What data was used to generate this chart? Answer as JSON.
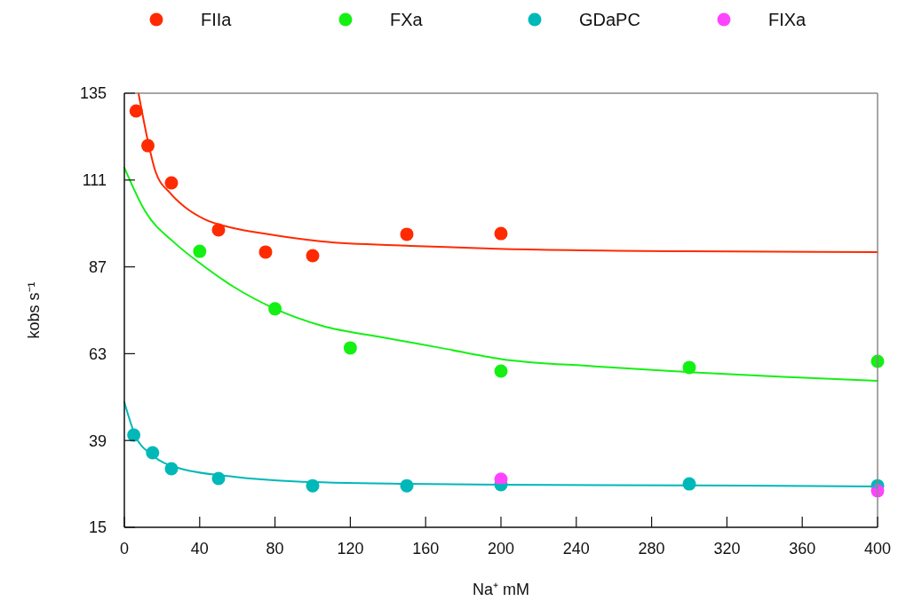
{
  "chart_data": {
    "type": "scatter",
    "xlabel": "Na⁺ mM",
    "ylabel": "kobs s⁻¹",
    "xlim": [
      0,
      400
    ],
    "ylim": [
      15,
      135
    ],
    "xticks": [
      0,
      40,
      80,
      120,
      160,
      200,
      240,
      280,
      320,
      360,
      400
    ],
    "yticks": [
      15,
      39,
      63,
      87,
      111,
      135
    ],
    "legend": "top",
    "marker": "circle",
    "grid": false,
    "series": [
      {
        "name": "FIIa",
        "color": "#ff2a00",
        "x": [
          6.25,
          12.5,
          25,
          50,
          75,
          100,
          150,
          200
        ],
        "values": [
          130.1,
          120.5,
          110.2,
          97.2,
          91.1,
          90.1,
          96,
          96.2
        ]
      },
      {
        "name": "FXa",
        "color": "#14f014",
        "x": [
          40,
          80,
          120,
          200,
          300,
          400
        ],
        "values": [
          91.3,
          75.4,
          64.6,
          58.2,
          59.2,
          60.9
        ]
      },
      {
        "name": "GDaPC",
        "color": "#00b8b8",
        "x": [
          5,
          15,
          25,
          50,
          100,
          150,
          200,
          300,
          400
        ],
        "values": [
          40.5,
          35.6,
          31.2,
          28.5,
          26.5,
          26.5,
          26.8,
          27,
          26.5
        ]
      },
      {
        "name": "FIXa",
        "color": "#ff44ff",
        "x": [
          200,
          400
        ],
        "values": [
          28.3,
          25.1
        ]
      },
      {
        "type": "line",
        "marker": "none",
        "color": "#ff2a00",
        "x": [
          7.5,
          14,
          16.5,
          24.5,
          32,
          42.5,
          58,
          74,
          105,
          152,
          198,
          300,
          400
        ],
        "values": [
          135,
          118.3,
          113.4,
          107.3,
          103.6,
          100.2,
          97.7,
          96.2,
          94,
          92.8,
          92,
          91.3,
          91.1
        ]
      },
      {
        "type": "line",
        "marker": "none",
        "color": "#14f014",
        "x": [
          0,
          11,
          27,
          42.5,
          58,
          80,
          105,
          137,
          168,
          200,
          250,
          300,
          350,
          400
        ],
        "values": [
          114.4,
          102.4,
          93.5,
          87.1,
          81.5,
          75.4,
          70.7,
          67.5,
          64.6,
          61.5,
          59.5,
          57.9,
          56.6,
          55.5
        ]
      },
      {
        "type": "line",
        "marker": "none",
        "color": "#00b8b8",
        "x": [
          0,
          5.7,
          15,
          28,
          58,
          90,
          150,
          200,
          300,
          400
        ],
        "values": [
          49.6,
          40.5,
          34.9,
          31.5,
          29,
          27.7,
          27,
          26.8,
          26.6,
          26.3
        ]
      }
    ]
  }
}
